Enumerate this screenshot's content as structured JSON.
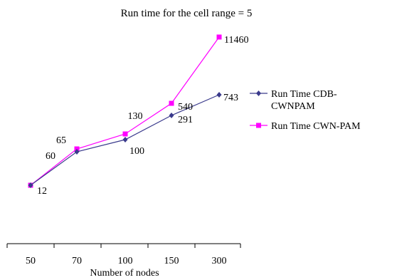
{
  "chart_data": {
    "type": "line",
    "title": "Run time for the cell  range = 5",
    "xlabel": "Number of nodes",
    "ylabel": "",
    "categories": [
      "50",
      "70",
      "100",
      "150",
      "300"
    ],
    "legend_position": "right",
    "grid": false,
    "series": [
      {
        "name": "Run Time  CDB-CWNPAM",
        "legend_lines": [
          "Run Time  CDB-",
          "CWNPAM"
        ],
        "values": [
          12,
          60,
          100,
          291,
          743
        ],
        "labels": [
          "12",
          "60",
          "100",
          "291",
          "743"
        ],
        "color": "#3a3a8c",
        "marker": "diamond"
      },
      {
        "name": "Run Time CWN-PAM",
        "legend_lines": [
          "Run Time CWN-PAM"
        ],
        "values": [
          12,
          65,
          130,
          540,
          11460
        ],
        "labels": [
          "",
          "65",
          "130",
          "540",
          "11460"
        ],
        "color": "#ff00ff",
        "marker": "square"
      }
    ]
  }
}
